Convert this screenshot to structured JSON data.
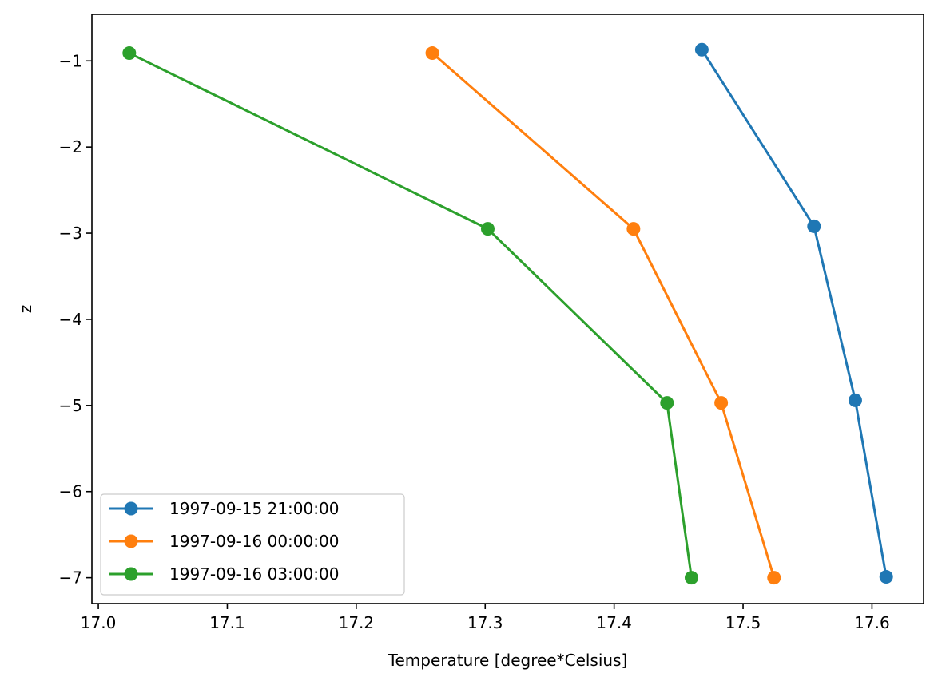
{
  "chart_data": {
    "type": "line",
    "xlabel": "Temperature [degree*Celsius]",
    "ylabel": "z",
    "xlim": [
      16.995,
      17.64
    ],
    "ylim": [
      -7.3,
      -0.46
    ],
    "xticks": [
      17.0,
      17.1,
      17.2,
      17.3,
      17.4,
      17.5,
      17.6
    ],
    "xtick_labels": [
      "17.0",
      "17.1",
      "17.2",
      "17.3",
      "17.4",
      "17.5",
      "17.6"
    ],
    "yticks": [
      -1,
      -2,
      -3,
      -4,
      -5,
      -6,
      -7
    ],
    "ytick_labels": [
      "−1",
      "−2",
      "−3",
      "−4",
      "−5",
      "−6",
      "−7"
    ],
    "grid": false,
    "legend_position": "lower-left",
    "series": [
      {
        "name": "1997-09-15 21:00:00",
        "color": "#1f77b4",
        "marker": "circle",
        "x": [
          17.468,
          17.555,
          17.587,
          17.611
        ],
        "y": [
          -0.87,
          -2.92,
          -4.94,
          -6.99
        ]
      },
      {
        "name": "1997-09-16 00:00:00",
        "color": "#ff7f0e",
        "marker": "circle",
        "x": [
          17.259,
          17.415,
          17.483,
          17.524
        ],
        "y": [
          -0.91,
          -2.95,
          -4.97,
          -7.0
        ]
      },
      {
        "name": "1997-09-16 03:00:00",
        "color": "#2ca02c",
        "marker": "circle",
        "x": [
          17.024,
          17.302,
          17.441,
          17.46
        ],
        "y": [
          -0.91,
          -2.95,
          -4.97,
          -7.0
        ]
      }
    ]
  }
}
